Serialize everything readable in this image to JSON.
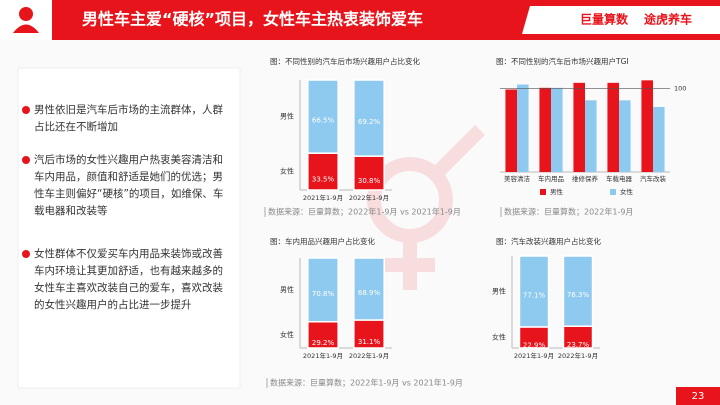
{
  "header": {
    "title": "男性车主爱“硬核”项目，女性车主热衷装饰爱车",
    "logo_1": "巨量算数",
    "logo_2": "途虎养车"
  },
  "bullets": [
    "男性依旧是汽车后市场的主流群体，人群占比还在不断增加",
    "汽后市场的女性兴趣用户热衷美容清洁和车内用品，颜值和舒适是她们的优选；男性车主则偏好“硬核”的项目，如维保、车载电器和改装等",
    "女性群体不仅爱买车内用品来装饰或改善车内环境让其更加舒适，也有越来越多的女性车主喜欢改装自己的爱车，喜欢改装的女性兴趣用户的占比进一步提升"
  ],
  "chart_data": [
    {
      "type": "stacked",
      "title": "图：不同性别的汽车后市场兴趣用户占比变化",
      "categories": [
        "2021年1-9月",
        "2022年1-9月"
      ],
      "ylim": [
        0,
        100
      ],
      "series": [
        {
          "name": "男性",
          "color": "#8ec9ef",
          "values": [
            66.5,
            69.2
          ],
          "value_labels": [
            "66.5%",
            "69.2%"
          ]
        },
        {
          "name": "女性",
          "color": "#e8141b",
          "values": [
            33.5,
            30.8
          ],
          "value_labels": [
            "33.5%",
            "30.8%"
          ]
        }
      ],
      "source": "数据来源：巨量算数；2022年1-9月 vs 2021年1-9月"
    },
    {
      "type": "bar",
      "title": "图：不同性别的汽车后市场兴趣用户TGI",
      "categories": [
        "美容清洁",
        "车内用品",
        "维修保养",
        "车载电器",
        "汽车改装"
      ],
      "ylim": [
        0,
        120
      ],
      "reference_line": 100,
      "series": [
        {
          "name": "男性",
          "color": "#e8141b",
          "values": [
            99,
            101,
            107,
            107,
            110
          ]
        },
        {
          "name": "女性",
          "color": "#8ec9ef",
          "values": [
            105,
            101,
            86,
            86,
            78
          ]
        }
      ],
      "source": "数据来源：巨量算数；2022年1-9月"
    },
    {
      "type": "stacked",
      "title": "图：车内用品兴趣用户占比变化",
      "categories": [
        "2021年1-9月",
        "2022年1-9月"
      ],
      "ylim": [
        0,
        100
      ],
      "series": [
        {
          "name": "男性",
          "color": "#8ec9ef",
          "values": [
            70.8,
            68.9
          ],
          "value_labels": [
            "70.8%",
            "68.9%"
          ]
        },
        {
          "name": "女性",
          "color": "#e8141b",
          "values": [
            29.2,
            31.1
          ],
          "value_labels": [
            "29.2%",
            "31.1%"
          ]
        }
      ],
      "source": "数据来源：巨量算数；2022年1-9月 vs 2021年1-9月"
    },
    {
      "type": "stacked",
      "title": "图：汽车改装兴趣用户占比变化",
      "categories": [
        "2021年1-9月",
        "2022年1-9月"
      ],
      "ylim": [
        0,
        100
      ],
      "series": [
        {
          "name": "男性",
          "color": "#8ec9ef",
          "values": [
            77.1,
            76.3
          ],
          "value_labels": [
            "77.1%",
            "76.3%"
          ]
        },
        {
          "name": "女性",
          "color": "#e8141b",
          "values": [
            22.9,
            23.7
          ],
          "value_labels": [
            "22.9%",
            "23.7%"
          ]
        }
      ]
    }
  ],
  "page_number": "23"
}
